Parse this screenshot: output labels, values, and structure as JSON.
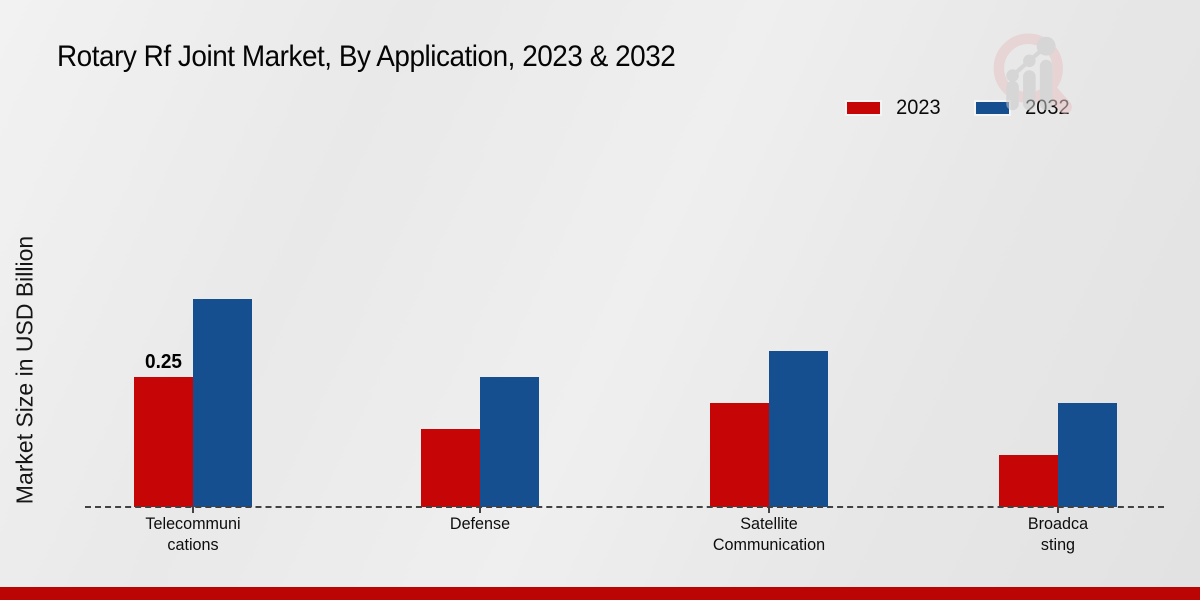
{
  "page": {
    "title": "Rotary Rf Joint Market, By Application, 2023 & 2032"
  },
  "legend": {
    "items": [
      {
        "label": "2023",
        "color": "#c60606"
      },
      {
        "label": "2032",
        "color": "#164f90"
      }
    ]
  },
  "icons": {
    "watermark": "magnifier-bar-chart-logo",
    "watermark_ring_color": "#e7c4c4",
    "watermark_bar_color": "#c9c9c9"
  },
  "chart_data": {
    "type": "bar",
    "title": "Rotary Rf Joint Market, By Application, 2023 & 2032",
    "categories": [
      "Telecommuni\ncations",
      "Defense",
      "Satellite\nCommunication",
      "Broadca\nsting"
    ],
    "series": [
      {
        "name": "2023",
        "color": "#c60606",
        "values": [
          0.25,
          0.15,
          0.2,
          0.1
        ]
      },
      {
        "name": "2032",
        "color": "#164f90",
        "values": [
          0.4,
          0.25,
          0.3,
          0.2
        ]
      }
    ],
    "bar_labels": [
      {
        "series": 0,
        "category": 0,
        "text": "0.25"
      }
    ],
    "xlabel": "",
    "ylabel": "Market Size in USD Billion",
    "ylim": [
      0,
      0.45
    ],
    "grid": false,
    "legend_position": "top-right",
    "baseline_style": "dashed"
  },
  "footer": {
    "accent_color": "#bb0404"
  }
}
